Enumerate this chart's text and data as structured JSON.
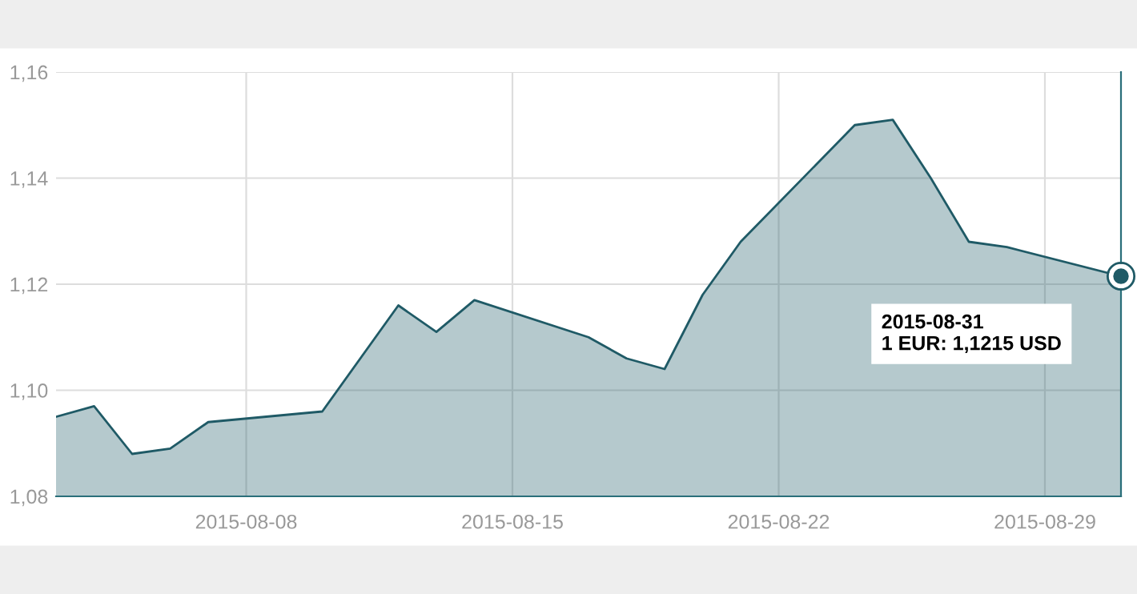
{
  "chart_data": {
    "type": "area",
    "x": [
      "2015-08-03",
      "2015-08-04",
      "2015-08-05",
      "2015-08-06",
      "2015-08-07",
      "2015-08-10",
      "2015-08-12",
      "2015-08-13",
      "2015-08-14",
      "2015-08-17",
      "2015-08-18",
      "2015-08-19",
      "2015-08-20",
      "2015-08-21",
      "2015-08-24",
      "2015-08-25",
      "2015-08-26",
      "2015-08-27",
      "2015-08-28",
      "2015-08-31"
    ],
    "series": [
      {
        "color": "#1f5a66",
        "values": [
          1.095,
          1.097,
          1.088,
          1.089,
          1.094,
          1.096,
          1.116,
          1.111,
          1.117,
          1.11,
          1.106,
          1.104,
          1.118,
          1.128,
          1.15,
          1.151,
          1.14,
          1.128,
          1.127,
          1.1215
        ]
      }
    ],
    "xlim": [
      "2015-08-03",
      "2015-08-31"
    ],
    "xticks": [
      "2015-08-08",
      "2015-08-15",
      "2015-08-22",
      "2015-08-29"
    ],
    "ylim": [
      1.08,
      1.16
    ],
    "yticks": [
      {
        "value": 1.08,
        "label": "1,08"
      },
      {
        "value": 1.1,
        "label": "1,10"
      },
      {
        "value": 1.12,
        "label": "1,12"
      },
      {
        "value": 1.14,
        "label": "1,14"
      },
      {
        "value": 1.16,
        "label": "1,16"
      }
    ],
    "grid": true,
    "legend": false,
    "annotations": [
      "2015-08-31\n1 EUR: 1,1215 USD"
    ]
  }
}
